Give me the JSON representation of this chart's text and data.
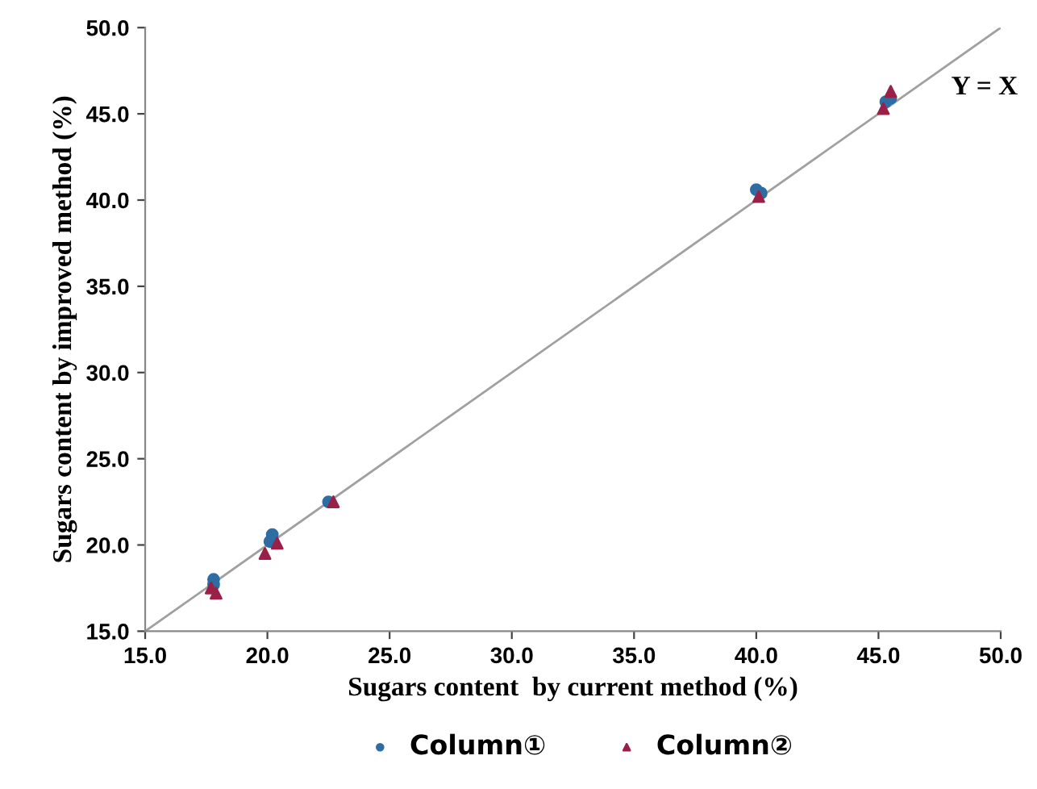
{
  "chart_data": {
    "type": "scatter",
    "xlabel": "Sugars content  by current method (%)",
    "ylabel": "Sugars content by improved method (%)",
    "annotations": [
      "Y = X"
    ],
    "xlim": [
      15,
      50
    ],
    "ylim": [
      15,
      50
    ],
    "xticks": [
      {
        "value": 15,
        "label": "15.0"
      },
      {
        "value": 20,
        "label": "20.0"
      },
      {
        "value": 25,
        "label": "25.0"
      },
      {
        "value": 30,
        "label": "30.0"
      },
      {
        "value": 35,
        "label": "35.0"
      },
      {
        "value": 40,
        "label": "40.0"
      },
      {
        "value": 45,
        "label": "45.0"
      },
      {
        "value": 50,
        "label": "50.0"
      }
    ],
    "yticks": [
      {
        "value": 15,
        "label": "15.0"
      },
      {
        "value": 20,
        "label": "20.0"
      },
      {
        "value": 25,
        "label": "25.0"
      },
      {
        "value": 30,
        "label": "30.0"
      },
      {
        "value": 35,
        "label": "35.0"
      },
      {
        "value": 40,
        "label": "40.0"
      },
      {
        "value": 45,
        "label": "45.0"
      },
      {
        "value": 50,
        "label": "50.0"
      }
    ],
    "grid": false,
    "legend": "bottom",
    "series": [
      {
        "name": "Column①",
        "color": "#2e6da4",
        "marker": "circle",
        "x": [
          17.8,
          17.8,
          20.2,
          20.1,
          22.5,
          40.0,
          40.2,
          45.3,
          45.5
        ],
        "values": [
          18.0,
          17.7,
          20.6,
          20.2,
          22.5,
          40.6,
          40.4,
          45.7,
          45.9
        ]
      },
      {
        "name": "Column②",
        "color": "#9b2047",
        "marker": "triangle",
        "x": [
          17.9,
          17.7,
          19.9,
          20.4,
          22.7,
          40.1,
          45.2,
          45.5
        ],
        "values": [
          17.2,
          17.5,
          19.5,
          20.1,
          22.5,
          40.2,
          45.3,
          46.3
        ]
      },
      {
        "type": "line",
        "color": "#a0a0a0",
        "marker": "none",
        "x": [
          15,
          50
        ],
        "values": [
          15,
          50
        ]
      }
    ]
  }
}
